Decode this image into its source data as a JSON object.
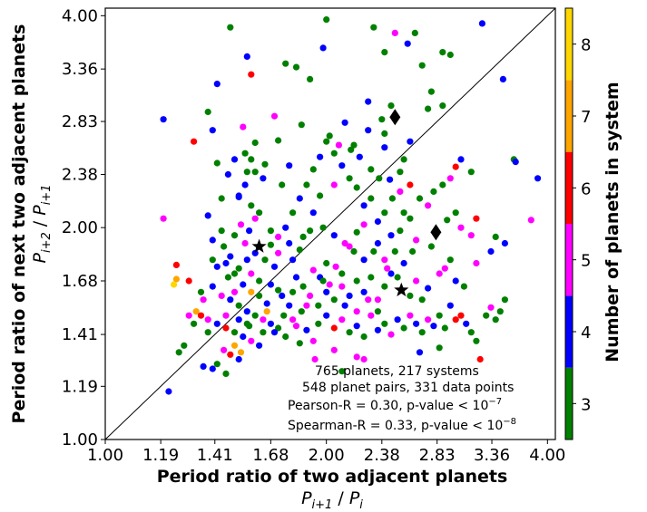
{
  "chart_data": {
    "type": "scatter",
    "xlabel": "Period ratio of two adjacent planets",
    "xlabel_math": {
      "base": "P",
      "sub1": "i+1",
      "sep": " / ",
      "base2": "P",
      "sub2": "i"
    },
    "ylabel": "Period ratio of next two adjacent planets",
    "ylabel_math": {
      "base": "P",
      "sub1": "i+2",
      "sep": " / ",
      "base2": "P",
      "sub2": "i+1"
    },
    "scale": "log",
    "xlim": [
      1.0,
      4.1
    ],
    "ylim": [
      1.0,
      4.1
    ],
    "xticks": [
      "1.00",
      "1.19",
      "1.41",
      "1.68",
      "2.00",
      "2.38",
      "2.83",
      "3.36",
      "4.00"
    ],
    "yticks": [
      "1.00",
      "1.19",
      "1.41",
      "1.68",
      "2.00",
      "2.38",
      "2.83",
      "3.36",
      "4.00"
    ],
    "annotations": [
      "765 planets, 217 systems",
      "548 planet pairs, 331 data points",
      {
        "text": "Pearson-R = 0.30, p-value < 10",
        "exp": "−7"
      },
      {
        "text": "Spearman-R = 0.33, p-value < 10",
        "exp": "−8"
      }
    ],
    "colorbar": {
      "label": "Number of planets in system",
      "ticks": [
        "3",
        "4",
        "5",
        "6",
        "7",
        "8"
      ],
      "colors": {
        "3": "#008000",
        "4": "#0000ff",
        "5": "#ff00ff",
        "6": "#ff0000",
        "7": "#ffa500",
        "8": "#ffd700"
      }
    },
    "special_markers": [
      {
        "shape": "star",
        "x": 1.62,
        "y": 1.88
      },
      {
        "shape": "star",
        "x": 2.53,
        "y": 1.63
      },
      {
        "shape": "diamond",
        "x": 2.48,
        "y": 2.87
      },
      {
        "shape": "diamond",
        "x": 2.82,
        "y": 1.97
      }
    ],
    "points": [
      [
        1.48,
        3.85,
        3
      ],
      [
        1.56,
        3.5,
        4
      ],
      [
        1.58,
        3.3,
        6
      ],
      [
        1.42,
        3.2,
        4
      ],
      [
        1.2,
        2.85,
        4
      ],
      [
        1.54,
        2.78,
        5
      ],
      [
        1.32,
        2.65,
        6
      ],
      [
        1.4,
        2.75,
        4
      ],
      [
        1.55,
        2.55,
        3
      ],
      [
        1.5,
        2.5,
        4
      ],
      [
        1.42,
        2.47,
        3
      ],
      [
        1.47,
        2.38,
        4
      ],
      [
        1.55,
        2.3,
        4
      ],
      [
        1.6,
        2.4,
        3
      ],
      [
        1.64,
        2.35,
        4
      ],
      [
        1.44,
        2.2,
        3
      ],
      [
        1.52,
        2.21,
        4
      ],
      [
        1.58,
        2.15,
        3
      ],
      [
        1.62,
        2.1,
        3
      ],
      [
        1.38,
        2.08,
        4
      ],
      [
        1.2,
        2.06,
        5
      ],
      [
        1.53,
        2.02,
        5
      ],
      [
        1.57,
        1.98,
        4
      ],
      [
        1.5,
        1.95,
        3
      ],
      [
        1.4,
        1.92,
        4
      ],
      [
        1.45,
        1.88,
        3
      ],
      [
        1.55,
        1.9,
        5
      ],
      [
        1.6,
        1.84,
        4
      ],
      [
        1.65,
        1.8,
        3
      ],
      [
        1.7,
        1.76,
        4
      ],
      [
        1.48,
        1.82,
        4
      ],
      [
        1.52,
        1.75,
        3
      ],
      [
        1.58,
        1.72,
        5
      ],
      [
        1.62,
        1.68,
        3
      ],
      [
        1.68,
        1.66,
        4
      ],
      [
        1.72,
        1.63,
        3
      ],
      [
        1.25,
        1.77,
        6
      ],
      [
        1.25,
        1.69,
        7
      ],
      [
        1.24,
        1.66,
        8
      ],
      [
        1.3,
        1.68,
        6
      ],
      [
        1.35,
        1.62,
        3
      ],
      [
        1.4,
        1.65,
        4
      ],
      [
        1.44,
        1.6,
        5
      ],
      [
        1.48,
        1.58,
        4
      ],
      [
        1.52,
        1.55,
        3
      ],
      [
        1.56,
        1.52,
        4
      ],
      [
        1.6,
        1.5,
        3
      ],
      [
        1.64,
        1.48,
        5
      ],
      [
        1.68,
        1.46,
        4
      ],
      [
        1.72,
        1.44,
        3
      ],
      [
        1.33,
        1.52,
        7
      ],
      [
        1.35,
        1.5,
        6
      ],
      [
        1.38,
        1.48,
        5
      ],
      [
        1.42,
        1.46,
        4
      ],
      [
        1.46,
        1.44,
        6
      ],
      [
        1.5,
        1.42,
        3
      ],
      [
        1.54,
        1.4,
        4
      ],
      [
        1.58,
        1.38,
        5
      ],
      [
        1.62,
        1.36,
        4
      ],
      [
        1.45,
        1.34,
        5
      ],
      [
        1.48,
        1.32,
        6
      ],
      [
        1.52,
        1.3,
        4
      ],
      [
        1.42,
        1.28,
        3
      ],
      [
        1.4,
        1.26,
        4
      ],
      [
        1.46,
        1.24,
        3
      ],
      [
        1.28,
        1.36,
        3
      ],
      [
        1.26,
        1.33,
        3
      ],
      [
        1.22,
        1.17,
        4
      ],
      [
        1.36,
        1.27,
        4
      ],
      [
        1.5,
        1.36,
        7
      ],
      [
        1.53,
        1.33,
        7
      ],
      [
        1.57,
        1.45,
        3
      ],
      [
        1.66,
        1.52,
        7
      ],
      [
        1.74,
        1.6,
        4
      ],
      [
        1.75,
        1.5,
        3
      ],
      [
        1.78,
        1.55,
        4
      ],
      [
        1.8,
        1.48,
        5
      ],
      [
        1.85,
        1.52,
        3
      ],
      [
        1.7,
        1.42,
        4
      ],
      [
        1.76,
        1.4,
        3
      ],
      [
        1.82,
        1.45,
        5
      ],
      [
        1.84,
        1.37,
        3
      ],
      [
        1.88,
        1.43,
        4
      ],
      [
        1.92,
        1.38,
        5
      ],
      [
        1.95,
        1.46,
        3
      ],
      [
        2.0,
        1.5,
        4
      ],
      [
        2.05,
        1.44,
        6
      ],
      [
        2.1,
        1.48,
        5
      ],
      [
        2.15,
        1.42,
        3
      ],
      [
        2.2,
        1.45,
        4
      ],
      [
        2.25,
        1.4,
        3
      ],
      [
        2.3,
        1.5,
        5
      ],
      [
        2.35,
        1.43,
        4
      ],
      [
        2.4,
        1.46,
        3
      ],
      [
        2.45,
        1.41,
        5
      ],
      [
        2.5,
        1.48,
        4
      ],
      [
        2.55,
        1.44,
        3
      ],
      [
        2.6,
        1.5,
        5
      ],
      [
        2.65,
        1.46,
        4
      ],
      [
        2.7,
        1.42,
        3
      ],
      [
        2.75,
        1.48,
        5
      ],
      [
        2.8,
        1.45,
        4
      ],
      [
        2.85,
        1.5,
        3
      ],
      [
        2.9,
        1.44,
        3
      ],
      [
        2.95,
        1.55,
        4
      ],
      [
        3.0,
        1.48,
        6
      ],
      [
        3.05,
        1.5,
        6
      ],
      [
        3.1,
        1.46,
        4
      ],
      [
        3.15,
        1.42,
        3
      ],
      [
        3.2,
        1.38,
        3
      ],
      [
        3.24,
        1.3,
        6
      ],
      [
        3.3,
        1.5,
        3
      ],
      [
        3.35,
        1.54,
        5
      ],
      [
        3.4,
        1.48,
        3
      ],
      [
        3.45,
        1.52,
        3
      ],
      [
        3.5,
        1.58,
        3
      ],
      [
        2.85,
        1.35,
        3
      ],
      [
        2.68,
        1.33,
        4
      ],
      [
        2.2,
        1.31,
        5
      ],
      [
        2.05,
        1.34,
        5
      ],
      [
        1.93,
        1.3,
        5
      ],
      [
        2.1,
        1.25,
        3
      ],
      [
        2.25,
        1.3,
        5
      ],
      [
        1.82,
        1.7,
        4
      ],
      [
        1.86,
        1.65,
        3
      ],
      [
        1.9,
        1.6,
        5
      ],
      [
        1.95,
        1.55,
        3
      ],
      [
        2.0,
        1.62,
        4
      ],
      [
        2.05,
        1.58,
        3
      ],
      [
        2.1,
        1.65,
        5
      ],
      [
        2.15,
        1.6,
        4
      ],
      [
        2.2,
        1.68,
        3
      ],
      [
        2.25,
        1.62,
        4
      ],
      [
        2.3,
        1.7,
        3
      ],
      [
        2.35,
        1.58,
        5
      ],
      [
        2.4,
        1.65,
        3
      ],
      [
        2.45,
        1.72,
        4
      ],
      [
        2.6,
        1.6,
        3
      ],
      [
        2.65,
        1.68,
        5
      ],
      [
        2.7,
        1.58,
        3
      ],
      [
        2.75,
        1.64,
        4
      ],
      [
        2.9,
        1.75,
        5
      ],
      [
        2.95,
        1.8,
        3
      ],
      [
        3.0,
        1.68,
        4
      ],
      [
        3.08,
        1.65,
        3
      ],
      [
        3.2,
        1.78,
        5
      ],
      [
        3.35,
        1.85,
        4
      ],
      [
        3.4,
        1.94,
        3
      ],
      [
        3.5,
        1.9,
        4
      ],
      [
        3.6,
        2.5,
        3
      ],
      [
        3.62,
        2.48,
        4
      ],
      [
        3.8,
        2.05,
        5
      ],
      [
        3.88,
        2.35,
        4
      ],
      [
        3.48,
        3.25,
        4
      ],
      [
        3.26,
        3.9,
        4
      ],
      [
        2.95,
        3.52,
        3
      ],
      [
        2.88,
        3.55,
        3
      ],
      [
        2.4,
        3.55,
        3
      ],
      [
        2.32,
        3.85,
        3
      ],
      [
        2.48,
        3.78,
        5
      ],
      [
        2.64,
        3.78,
        3
      ],
      [
        2.58,
        3.65,
        4
      ],
      [
        2.7,
        3.4,
        3
      ],
      [
        2.78,
        3.12,
        3
      ],
      [
        2.75,
        2.95,
        3
      ],
      [
        2.88,
        2.98,
        3
      ],
      [
        2.45,
        2.98,
        3
      ],
      [
        2.38,
        2.85,
        3
      ],
      [
        2.28,
        2.75,
        4
      ],
      [
        2.4,
        2.6,
        4
      ],
      [
        2.55,
        2.5,
        3
      ],
      [
        2.6,
        2.3,
        6
      ],
      [
        2.68,
        2.2,
        3
      ],
      [
        2.75,
        2.15,
        5
      ],
      [
        2.8,
        2.25,
        3
      ],
      [
        2.88,
        2.3,
        3
      ],
      [
        2.95,
        2.35,
        5
      ],
      [
        3.0,
        2.44,
        6
      ],
      [
        3.05,
        2.5,
        4
      ],
      [
        3.15,
        2.4,
        3
      ],
      [
        3.0,
        2.1,
        3
      ],
      [
        2.92,
        2.05,
        3
      ],
      [
        3.05,
        2.0,
        5
      ],
      [
        3.15,
        1.95,
        5
      ],
      [
        3.2,
        2.06,
        6
      ],
      [
        2.6,
        2.06,
        3
      ],
      [
        2.52,
        1.98,
        3
      ],
      [
        2.45,
        1.95,
        4
      ],
      [
        2.4,
        2.1,
        3
      ],
      [
        2.35,
        2.04,
        4
      ],
      [
        2.3,
        2.2,
        3
      ],
      [
        2.25,
        2.15,
        4
      ],
      [
        2.2,
        2.28,
        3
      ],
      [
        2.15,
        2.35,
        3
      ],
      [
        2.1,
        2.45,
        4
      ],
      [
        2.05,
        2.55,
        3
      ],
      [
        2.0,
        2.65,
        3
      ],
      [
        1.96,
        2.52,
        4
      ],
      [
        1.92,
        2.42,
        3
      ],
      [
        1.88,
        2.3,
        3
      ],
      [
        1.84,
        2.2,
        4
      ],
      [
        1.8,
        2.1,
        3
      ],
      [
        1.76,
        2.0,
        4
      ],
      [
        1.72,
        1.94,
        5
      ],
      [
        1.68,
        1.98,
        3
      ],
      [
        1.74,
        2.3,
        3
      ],
      [
        1.78,
        2.45,
        4
      ],
      [
        1.85,
        2.8,
        3
      ],
      [
        1.9,
        3.25,
        3
      ],
      [
        1.98,
        3.6,
        4
      ],
      [
        1.76,
        3.42,
        3
      ],
      [
        1.82,
        3.38,
        3
      ],
      [
        1.7,
        2.88,
        5
      ],
      [
        1.58,
        2.5,
        3
      ],
      [
        1.92,
        2.1,
        4
      ],
      [
        1.98,
        2.0,
        3
      ],
      [
        2.05,
        1.95,
        4
      ],
      [
        2.12,
        1.9,
        5
      ],
      [
        2.18,
        1.85,
        3
      ],
      [
        2.25,
        1.8,
        4
      ],
      [
        2.32,
        1.85,
        3
      ],
      [
        2.4,
        1.8,
        5
      ],
      [
        2.48,
        1.85,
        3
      ],
      [
        2.55,
        1.78,
        4
      ],
      [
        2.62,
        1.85,
        3
      ],
      [
        2.28,
        3.02,
        4
      ],
      [
        2.12,
        2.82,
        4
      ],
      [
        2.02,
        2.7,
        3
      ],
      [
        2.18,
        2.62,
        3
      ],
      [
        1.96,
        2.22,
        3
      ],
      [
        2.05,
        2.3,
        5
      ],
      [
        2.0,
        3.95,
        3
      ],
      [
        1.38,
        2.92,
        3
      ],
      [
        1.65,
        2.46,
        3
      ],
      [
        1.6,
        2.06,
        5
      ],
      [
        1.84,
        1.86,
        3
      ],
      [
        1.78,
        1.9,
        4
      ],
      [
        2.2,
        1.97,
        3
      ],
      [
        2.25,
        2.02,
        5
      ],
      [
        2.35,
        1.9,
        4
      ],
      [
        2.55,
        2.1,
        3
      ],
      [
        2.65,
        1.92,
        5
      ],
      [
        2.78,
        1.88,
        3
      ],
      [
        2.85,
        1.72,
        5
      ],
      [
        2.5,
        1.7,
        3
      ],
      [
        2.42,
        1.75,
        5
      ],
      [
        2.06,
        1.76,
        5
      ],
      [
        2.1,
        1.72,
        3
      ],
      [
        1.92,
        1.74,
        5
      ],
      [
        1.96,
        1.7,
        4
      ],
      [
        2.0,
        1.78,
        3
      ],
      [
        2.02,
        1.66,
        5
      ],
      [
        1.88,
        1.55,
        5
      ],
      [
        1.8,
        1.62,
        3
      ],
      [
        2.12,
        1.55,
        4
      ],
      [
        2.2,
        1.52,
        5
      ],
      [
        2.28,
        1.58,
        5
      ],
      [
        2.35,
        1.52,
        3
      ],
      [
        1.98,
        1.68,
        3
      ],
      [
        1.62,
        1.6,
        3
      ],
      [
        1.66,
        1.56,
        4
      ],
      [
        1.58,
        1.62,
        7
      ],
      [
        1.64,
        1.42,
        3
      ],
      [
        1.56,
        1.46,
        3
      ],
      [
        1.52,
        1.48,
        4
      ],
      [
        1.46,
        1.5,
        5
      ],
      [
        1.36,
        1.58,
        5
      ],
      [
        1.32,
        1.46,
        3
      ],
      [
        1.3,
        1.5,
        5
      ],
      [
        1.38,
        1.42,
        3
      ],
      [
        1.5,
        1.62,
        5
      ],
      [
        1.54,
        1.66,
        4
      ],
      [
        1.47,
        1.7,
        3
      ],
      [
        1.42,
        1.76,
        4
      ],
      [
        1.56,
        1.8,
        4
      ],
      [
        1.62,
        1.88,
        4
      ],
      [
        1.68,
        1.89,
        3
      ],
      [
        1.72,
        1.84,
        5
      ],
      [
        1.8,
        1.8,
        4
      ],
      [
        1.86,
        1.94,
        3
      ],
      [
        1.9,
        1.98,
        3
      ],
      [
        2.3,
        2.42,
        3
      ],
      [
        2.36,
        2.35,
        3
      ],
      [
        2.44,
        2.34,
        4
      ],
      [
        2.52,
        2.4,
        3
      ],
      [
        2.46,
        2.2,
        3
      ],
      [
        2.52,
        2.25,
        5
      ],
      [
        2.22,
        2.52,
        4
      ],
      [
        2.16,
        2.58,
        3
      ],
      [
        2.08,
        2.62,
        5
      ],
      [
        2.4,
        2.72,
        3
      ],
      [
        2.6,
        2.65,
        4
      ],
      [
        2.15,
        1.88,
        5
      ],
      [
        1.72,
        2.66,
        3
      ],
      [
        1.6,
        2.64,
        3
      ],
      [
        1.56,
        2.4,
        3
      ],
      [
        1.52,
        2.22,
        4
      ],
      [
        1.44,
        1.98,
        3
      ],
      [
        1.4,
        1.8,
        3
      ],
      [
        1.46,
        1.78,
        4
      ],
      [
        1.5,
        1.72,
        3
      ]
    ]
  }
}
